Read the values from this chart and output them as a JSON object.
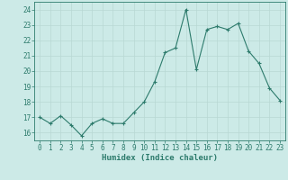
{
  "x": [
    0,
    1,
    2,
    3,
    4,
    5,
    6,
    7,
    8,
    9,
    10,
    11,
    12,
    13,
    14,
    15,
    16,
    17,
    18,
    19,
    20,
    21,
    22,
    23
  ],
  "y": [
    17.0,
    16.6,
    17.1,
    16.5,
    15.8,
    16.6,
    16.9,
    16.6,
    16.6,
    17.3,
    18.0,
    19.3,
    21.2,
    21.5,
    24.0,
    20.1,
    22.7,
    22.9,
    22.7,
    23.1,
    21.3,
    20.5,
    18.9,
    18.1
  ],
  "xlabel": "Humidex (Indice chaleur)",
  "xlim": [
    -0.5,
    23.5
  ],
  "ylim": [
    15.5,
    24.5
  ],
  "yticks": [
    16,
    17,
    18,
    19,
    20,
    21,
    22,
    23,
    24
  ],
  "xticks": [
    0,
    1,
    2,
    3,
    4,
    5,
    6,
    7,
    8,
    9,
    10,
    11,
    12,
    13,
    14,
    15,
    16,
    17,
    18,
    19,
    20,
    21,
    22,
    23
  ],
  "line_color": "#2d7b6c",
  "bg_color": "#cceae7",
  "grid_color": "#b8d8d4",
  "label_fontsize": 6.5,
  "tick_fontsize": 5.5
}
